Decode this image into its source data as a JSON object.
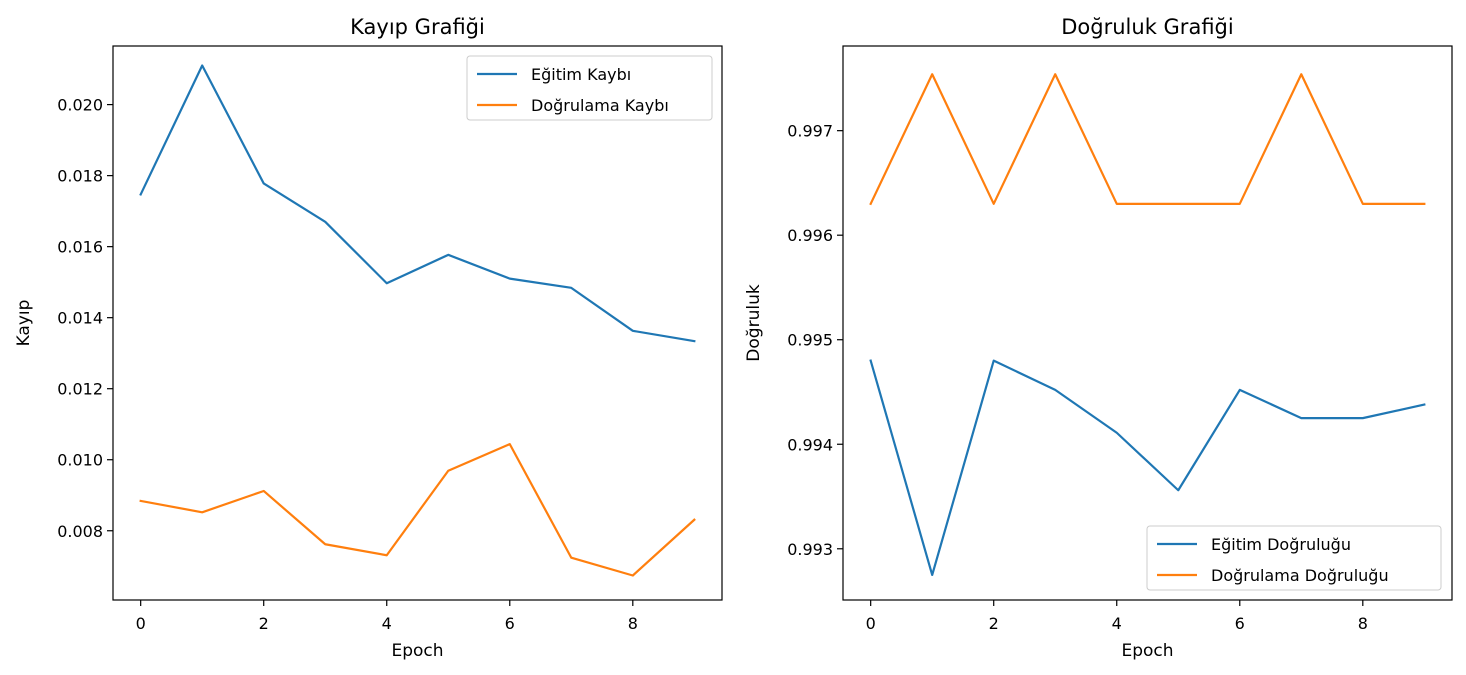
{
  "chart_data": [
    {
      "type": "line",
      "title": "Kayıp Grafiği",
      "xlabel": "Epoch",
      "ylabel": "Kayıp",
      "x": [
        0,
        1,
        2,
        3,
        4,
        5,
        6,
        7,
        8,
        9
      ],
      "xlim": [
        -0.45,
        9.45
      ],
      "ylim": [
        0.00605,
        0.02165
      ],
      "xticks": [
        0,
        2,
        4,
        6,
        8
      ],
      "xtick_labels": [
        "0",
        "2",
        "4",
        "6",
        "8"
      ],
      "yticks": [
        0.008,
        0.01,
        0.012,
        0.014,
        0.016,
        0.018,
        0.02
      ],
      "ytick_labels": [
        "0.008",
        "0.010",
        "0.012",
        "0.014",
        "0.016",
        "0.018",
        "0.020"
      ],
      "legend_position": "upper right",
      "grid": false,
      "series": [
        {
          "name": "Eğitim Kaybı",
          "color": "#1f77b4",
          "values": [
            0.01747,
            0.0211,
            0.01778,
            0.0167,
            0.01497,
            0.01577,
            0.0151,
            0.01484,
            0.01363,
            0.01334
          ]
        },
        {
          "name": "Doğrulama Kaybı",
          "color": "#ff7f0e",
          "values": [
            0.00884,
            0.00852,
            0.00912,
            0.00762,
            0.00731,
            0.00969,
            0.01044,
            0.00724,
            0.00674,
            0.00831
          ]
        }
      ]
    },
    {
      "type": "line",
      "title": "Doğruluk Grafiği",
      "xlabel": "Epoch",
      "ylabel": "Doğruluk",
      "x": [
        0,
        1,
        2,
        3,
        4,
        5,
        6,
        7,
        8,
        9
      ],
      "xlim": [
        -0.45,
        9.45
      ],
      "ylim": [
        0.99251,
        0.99781
      ],
      "xticks": [
        0,
        2,
        4,
        6,
        8
      ],
      "xtick_labels": [
        "0",
        "2",
        "4",
        "6",
        "8"
      ],
      "yticks": [
        0.993,
        0.994,
        0.995,
        0.996,
        0.997
      ],
      "ytick_labels": [
        "0.993",
        "0.994",
        "0.995",
        "0.996",
        "0.997"
      ],
      "legend_position": "lower right",
      "grid": false,
      "series": [
        {
          "name": "Eğitim Doğruluğu",
          "color": "#1f77b4",
          "values": [
            0.9948,
            0.99275,
            0.9948,
            0.99452,
            0.99411,
            0.99356,
            0.99452,
            0.99425,
            0.99425,
            0.99438
          ]
        },
        {
          "name": "Doğrulama Doğruluğu",
          "color": "#ff7f0e",
          "values": [
            0.9963,
            0.99754,
            0.9963,
            0.99754,
            0.9963,
            0.9963,
            0.9963,
            0.99754,
            0.9963,
            0.9963
          ]
        }
      ]
    }
  ]
}
